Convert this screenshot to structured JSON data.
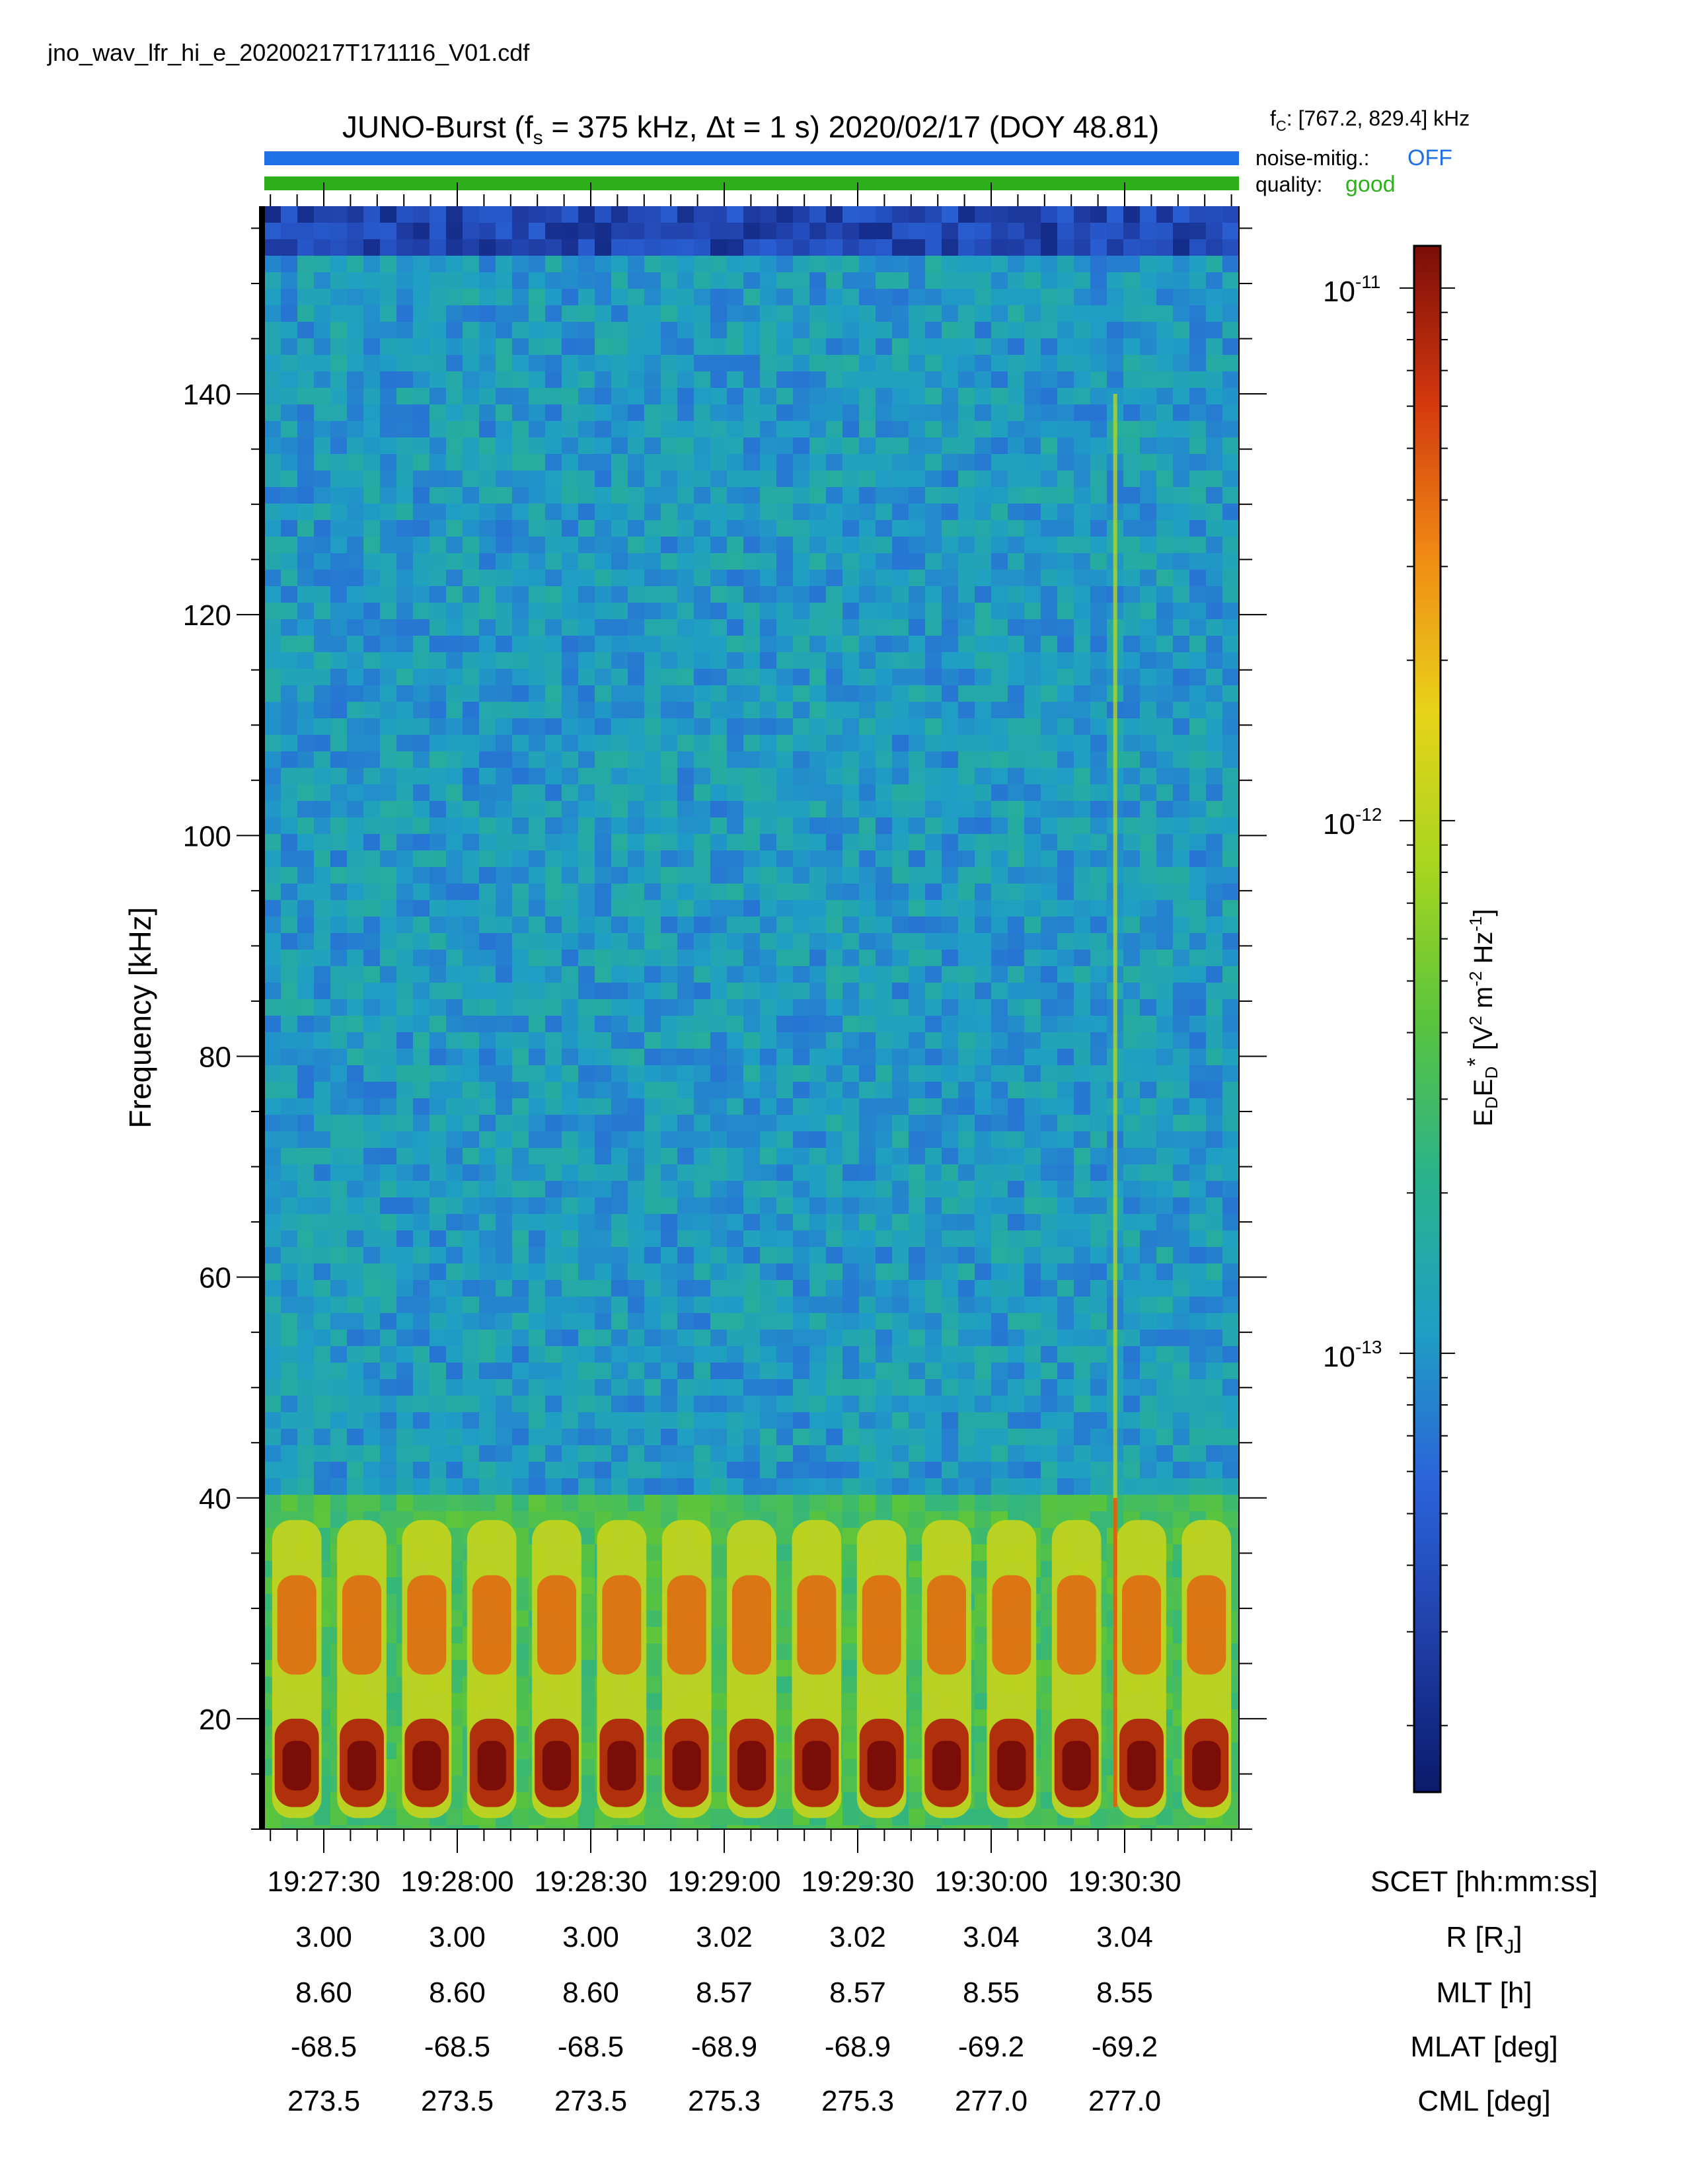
{
  "filename": "jno_wav_lfr_hi_e_20200217T171116_V01.cdf",
  "title": {
    "prefix": "JUNO-Burst (f",
    "fs_sub": "s",
    "fs_rest": " = 375 kHz, Δt = 1 s)  2020/02/17 (DOY 48.81)"
  },
  "fc": {
    "label": "f",
    "sub": "C",
    "value": ": [767.2, 829.4] kHz"
  },
  "noise_mitig": {
    "label": "noise-mitig.:",
    "value": "OFF",
    "color": "#1f6fe8"
  },
  "quality": {
    "label": "quality:",
    "value": "good",
    "color": "#2eb01c"
  },
  "colorbar": {
    "label": "E_D E*_D [V^2 m^-2 Hz^-1]",
    "tick_labels": [
      {
        "base": "10",
        "exp": "-11"
      },
      {
        "base": "10",
        "exp": "-12"
      },
      {
        "base": "10",
        "exp": "-13"
      }
    ],
    "colormap": [
      "#0b1a6b",
      "#1f3fa8",
      "#2b63d9",
      "#1f9fc4",
      "#2bb38a",
      "#5ac43c",
      "#a8d61f",
      "#e8d21a",
      "#f08a14",
      "#d2380e",
      "#7a0d08"
    ]
  },
  "footer_labels": {
    "scet": "SCET [hh:mm:ss]",
    "r": "R [R",
    "r_sub": "J",
    "r_close": "]",
    "mlt": "MLT [h]",
    "mlat": "MLAT [deg]",
    "cml": "CML [deg]"
  },
  "footer_rows": {
    "r": [
      "3.00",
      "3.00",
      "3.00",
      "3.02",
      "3.02",
      "3.04",
      "3.04"
    ],
    "mlt": [
      "8.60",
      "8.60",
      "8.60",
      "8.57",
      "8.57",
      "8.55",
      "8.55"
    ],
    "mlat": [
      "-68.5",
      "-68.5",
      "-68.5",
      "-68.9",
      "-68.9",
      "-69.2",
      "-69.2"
    ],
    "cml": [
      "273.5",
      "273.5",
      "273.5",
      "275.3",
      "275.3",
      "277.0",
      "277.0"
    ]
  },
  "chart_data": {
    "type": "heatmap",
    "title": "JUNO-Burst (fs = 375 kHz, Δt = 1 s)  2020/02/17 (DOY 48.81)",
    "xlabel": "",
    "ylabel": "Frequency [kHz]",
    "x_tick_labels": [
      "19:27:30",
      "19:28:00",
      "19:28:30",
      "19:29:00",
      "19:29:30",
      "19:30:00",
      "19:30:30"
    ],
    "y_ticks": [
      20,
      40,
      60,
      80,
      100,
      120,
      140
    ],
    "ylim": [
      10,
      157
    ],
    "color_scale": "log",
    "clim": [
      1.5e-14,
      1.2e-11
    ],
    "colorbar_ticks": [
      1e-11,
      1e-12,
      1e-13
    ],
    "features": {
      "background_level": 1.1e-13,
      "band_low_kHz": [
        11,
        20
      ],
      "band_low_level": 8e-12,
      "band_mid_kHz": [
        20,
        38
      ],
      "band_mid_level": 2.5e-12,
      "pulse_period_s": 15,
      "pulse_count": 15,
      "vertical_line_near": "19:30:25"
    }
  }
}
